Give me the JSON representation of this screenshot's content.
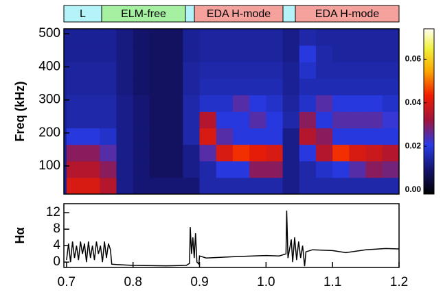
{
  "phases": [
    "L",
    "ELM-free",
    "EDA H-mode",
    "EDA H-mode"
  ],
  "chart_data": [
    {
      "type": "heatmap",
      "ylabel": "Freq (kHz)",
      "xbins": [
        0.7,
        0.725,
        0.75,
        0.775,
        0.8,
        0.825,
        0.85,
        0.875,
        0.9,
        0.925,
        0.95,
        0.975,
        1.0,
        1.025,
        1.05,
        1.075,
        1.1,
        1.125,
        1.15,
        1.175,
        1.2
      ],
      "ybins": [
        15,
        65,
        115,
        165,
        215,
        265,
        315,
        365,
        415,
        465,
        515
      ],
      "values": [
        [
          0.04,
          0.04,
          0.035,
          0.012,
          0.01,
          0.01,
          0.01,
          0.01,
          0.015,
          0.015,
          0.015,
          0.015,
          0.015,
          0.012,
          0.015,
          0.015,
          0.015,
          0.015,
          0.015,
          0.015
        ],
        [
          0.035,
          0.035,
          0.03,
          0.012,
          0.01,
          0.008,
          0.008,
          0.012,
          0.015,
          0.02,
          0.02,
          0.03,
          0.03,
          0.012,
          0.015,
          0.018,
          0.02,
          0.025,
          0.03,
          0.028
        ],
        [
          0.03,
          0.03,
          0.025,
          0.012,
          0.01,
          0.008,
          0.008,
          0.012,
          0.025,
          0.04,
          0.045,
          0.042,
          0.04,
          0.012,
          0.02,
          0.035,
          0.045,
          0.04,
          0.038,
          0.035
        ],
        [
          0.02,
          0.02,
          0.018,
          0.012,
          0.01,
          0.008,
          0.008,
          0.015,
          0.04,
          0.025,
          0.02,
          0.02,
          0.02,
          0.012,
          0.035,
          0.03,
          0.02,
          0.02,
          0.02,
          0.02
        ],
        [
          0.015,
          0.015,
          0.015,
          0.012,
          0.01,
          0.008,
          0.008,
          0.015,
          0.035,
          0.02,
          0.02,
          0.025,
          0.02,
          0.015,
          0.03,
          0.02,
          0.025,
          0.025,
          0.025,
          0.022
        ],
        [
          0.015,
          0.015,
          0.015,
          0.012,
          0.01,
          0.008,
          0.008,
          0.015,
          0.018,
          0.018,
          0.025,
          0.02,
          0.018,
          0.014,
          0.018,
          0.025,
          0.02,
          0.02,
          0.02,
          0.018
        ],
        [
          0.014,
          0.014,
          0.014,
          0.011,
          0.009,
          0.008,
          0.008,
          0.014,
          0.016,
          0.016,
          0.016,
          0.016,
          0.016,
          0.013,
          0.016,
          0.016,
          0.016,
          0.016,
          0.016,
          0.016
        ],
        [
          0.014,
          0.014,
          0.014,
          0.011,
          0.009,
          0.008,
          0.008,
          0.014,
          0.015,
          0.015,
          0.015,
          0.015,
          0.015,
          0.013,
          0.018,
          0.015,
          0.015,
          0.015,
          0.015,
          0.015
        ],
        [
          0.013,
          0.013,
          0.013,
          0.011,
          0.009,
          0.008,
          0.008,
          0.013,
          0.014,
          0.014,
          0.014,
          0.014,
          0.014,
          0.012,
          0.02,
          0.015,
          0.014,
          0.014,
          0.014,
          0.014
        ],
        [
          0.013,
          0.013,
          0.013,
          0.011,
          0.009,
          0.008,
          0.008,
          0.013,
          0.014,
          0.014,
          0.014,
          0.014,
          0.014,
          0.012,
          0.015,
          0.014,
          0.014,
          0.014,
          0.014,
          0.014
        ]
      ],
      "xlim": [
        0.696,
        1.2
      ],
      "ylim": [
        15,
        515
      ],
      "yticks": [
        100,
        200,
        300,
        400,
        500
      ],
      "clim": [
        -0.002,
        0.074
      ],
      "cticks": [
        {
          "value": 0,
          "label": "0.00"
        },
        {
          "value": 0.02,
          "label": "0.02"
        },
        {
          "value": 0.04,
          "label": "0.04"
        },
        {
          "value": 0.06,
          "label": "0.06"
        }
      ]
    },
    {
      "type": "line",
      "ylabel": "Hα",
      "color": "#000000",
      "x": [
        0.7,
        0.703,
        0.706,
        0.709,
        0.712,
        0.715,
        0.718,
        0.721,
        0.724,
        0.727,
        0.73,
        0.733,
        0.736,
        0.739,
        0.742,
        0.745,
        0.748,
        0.751,
        0.754,
        0.757,
        0.76,
        0.763,
        0.766,
        0.768,
        0.775,
        0.8,
        0.85,
        0.88,
        0.885,
        0.886,
        0.888,
        0.89,
        0.892,
        0.894,
        0.896,
        0.899,
        0.9,
        0.91,
        0.95,
        1.0,
        1.02,
        1.03,
        1.031,
        1.033,
        1.038,
        1.04,
        1.043,
        1.046,
        1.049,
        1.052,
        1.055,
        1.058,
        1.06,
        1.07,
        1.1,
        1.12,
        1.15,
        1.18,
        1.2
      ],
      "values": [
        0.5,
        4.5,
        0,
        5,
        1,
        4,
        0.5,
        5,
        2,
        4.5,
        0,
        5,
        1,
        4,
        0.5,
        5,
        2,
        4,
        0,
        5,
        1,
        4.5,
        3,
        -0.5,
        -0.6,
        -0.8,
        -0.9,
        -0.8,
        -0.3,
        8.5,
        2,
        6,
        1,
        7,
        0,
        -0.5,
        1.5,
        1,
        1.3,
        1.6,
        1.5,
        2,
        12.5,
        1,
        5.5,
        0,
        6,
        0.5,
        5,
        1,
        4,
        -1,
        2.5,
        3,
        2.8,
        2.3,
        3,
        3.3,
        3.2
      ],
      "xlim": [
        0.696,
        1.2
      ],
      "ylim": [
        -1.3,
        14.2
      ],
      "yticks": [
        0,
        4,
        8,
        12
      ],
      "xticks": [
        0.7,
        0.8,
        0.9,
        {
          "value": 1,
          "label": "1.0"
        },
        1.1,
        1.2
      ]
    }
  ]
}
